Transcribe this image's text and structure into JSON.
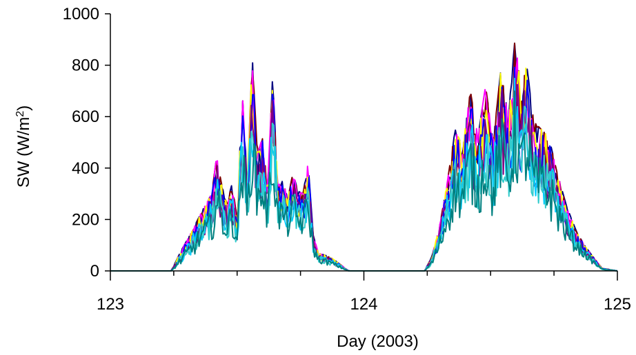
{
  "chart_data": {
    "type": "line",
    "xlabel": "Day (2003)",
    "ylabel": "SW (W/m",
    "ylabel_superscript": "2",
    "ylabel_close": ")",
    "xlim": [
      123,
      125
    ],
    "ylim": [
      0,
      1000
    ],
    "xticks": [
      {
        "value": 123,
        "label": "123"
      },
      {
        "value": 124,
        "label": "124"
      },
      {
        "value": 125,
        "label": "125"
      }
    ],
    "yticks": [
      {
        "value": 0,
        "label": "0"
      },
      {
        "value": 200,
        "label": "200"
      },
      {
        "value": 400,
        "label": "400"
      },
      {
        "value": 600,
        "label": "600"
      },
      {
        "value": 800,
        "label": "800"
      },
      {
        "value": 1000,
        "label": "1000"
      }
    ],
    "x_minor_ticks": [
      123.25,
      123.5,
      123.75,
      124.25,
      124.5,
      124.75
    ],
    "grid": false,
    "legend": "none",
    "series_envelope": {
      "x": [
        123.0,
        123.24,
        123.28,
        123.32,
        123.36,
        123.4,
        123.42,
        123.44,
        123.46,
        123.48,
        123.5,
        123.52,
        123.54,
        123.56,
        123.58,
        123.6,
        123.62,
        123.64,
        123.66,
        123.68,
        123.7,
        123.72,
        123.74,
        123.76,
        123.78,
        123.8,
        123.82,
        123.85,
        123.88,
        123.92,
        123.94,
        124.0,
        124.24,
        124.27,
        124.3,
        124.33,
        124.36,
        124.39,
        124.42,
        124.45,
        124.48,
        124.51,
        124.54,
        124.57,
        124.6,
        124.62,
        124.64,
        124.67,
        124.7,
        124.73,
        124.76,
        124.8,
        124.84,
        124.87,
        124.9,
        124.94,
        125.0
      ],
      "upper": [
        0,
        0,
        80,
        150,
        230,
        300,
        450,
        330,
        260,
        340,
        200,
        700,
        350,
        830,
        450,
        520,
        320,
        760,
        330,
        350,
        280,
        380,
        310,
        300,
        420,
        140,
        70,
        60,
        45,
        15,
        0,
        0,
        0,
        60,
        180,
        350,
        550,
        480,
        700,
        520,
        720,
        500,
        780,
        600,
        950,
        640,
        820,
        580,
        550,
        520,
        390,
        250,
        150,
        100,
        60,
        10,
        0
      ],
      "lower": [
        0,
        0,
        10,
        25,
        50,
        70,
        90,
        80,
        75,
        90,
        60,
        180,
        100,
        220,
        120,
        150,
        90,
        200,
        100,
        110,
        90,
        120,
        95,
        90,
        110,
        40,
        20,
        15,
        10,
        3,
        0,
        0,
        0,
        10,
        40,
        80,
        120,
        110,
        160,
        120,
        170,
        120,
        180,
        140,
        200,
        150,
        190,
        140,
        130,
        120,
        95,
        65,
        45,
        35,
        20,
        3,
        0
      ]
    },
    "series": [
      {
        "color": "#000080"
      },
      {
        "color": "#800000"
      },
      {
        "color": "#ff00ff"
      },
      {
        "color": "#ffff00"
      },
      {
        "color": "#0000ff"
      },
      {
        "color": "#800080"
      },
      {
        "color": "#00ccff"
      },
      {
        "color": "#33cccc"
      },
      {
        "color": "#008080"
      }
    ]
  }
}
